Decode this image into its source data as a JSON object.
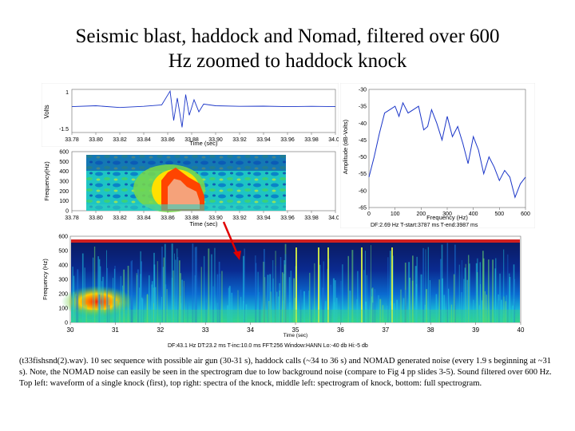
{
  "title_line1": "Seismic blast, haddock and Nomad, filtered over 600",
  "title_line2": "Hz zoomed to haddock knock",
  "waveform": {
    "ylabel": "Volts",
    "yticks": [
      "1",
      "-1.5"
    ],
    "xlabel": "Time (sec)",
    "xticks": [
      "33.78",
      "33.80",
      "33.82",
      "33.84",
      "33.86",
      "33.88",
      "33.90",
      "33.92",
      "33.94",
      "33.96",
      "33.98",
      "34.00"
    ]
  },
  "knock_spectrogram": {
    "ylabel": "Frequency(Hz)",
    "yticks": [
      "600",
      "500",
      "400",
      "300",
      "200",
      "100",
      "0"
    ],
    "xlabel": "Time (sec)",
    "xticks": [
      "33.78",
      "33.80",
      "33.82",
      "33.84",
      "33.86",
      "33.88",
      "33.90",
      "33.92",
      "33.94",
      "33.96",
      "33.98",
      "34.00"
    ]
  },
  "spectrum": {
    "ylabel": "Amplitude (dB-Volts)",
    "yticks": [
      "-30",
      "-35",
      "-40",
      "-45",
      "-50",
      "-55",
      "-60",
      "-65"
    ],
    "xlabel": "Frequency (Hz)",
    "xticks": [
      "0",
      "100",
      "200",
      "300",
      "400",
      "500",
      "600"
    ],
    "info": "DF:2.69 Hz    T-start:3787 ms    T-end:3987 ms"
  },
  "full_spectrogram": {
    "ylabel": "Frequency (Hz)",
    "yticks": [
      "600",
      "500",
      "400",
      "300",
      "200",
      "100",
      "0"
    ],
    "xlabel": "Time (sec)",
    "xticks": [
      "30",
      "31",
      "32",
      "33",
      "34",
      "35",
      "36",
      "37",
      "38",
      "39",
      "40"
    ],
    "info": "DF:43.1 Hz    DT:23.2 ms    T-inc:10.0 ms    FFT:256    Window:HANN    Lo:-40 db    Hi:-5 db"
  },
  "caption": "(t33fishsnd(2).wav). 10 sec sequence with possible air gun (30-31 s), haddock calls (~34 to 36 s) and NOMAD generated noise (every 1.9 s beginning at ~31 s).  Note, the NOMAD noise can easily be seen in the spectrogram due to low background noise (compare to Fig 4 pp slides 3-5). Sound filtered over 600 Hz. Top left: waveform of a single knock (first), top right: spectra of the knock, middle left: spectrogram of knock, bottom: full spectrogram.",
  "chart_data": [
    {
      "type": "line",
      "ylabel": "Volts",
      "xlabel": "Time (sec)",
      "xlim": [
        33.78,
        34.0
      ],
      "ylim": [
        -1.5,
        1
      ],
      "x": [
        33.78,
        33.8,
        33.82,
        33.84,
        33.855,
        33.862,
        33.865,
        33.868,
        33.872,
        33.875,
        33.878,
        33.882,
        33.886,
        33.89,
        33.9,
        33.92,
        33.94,
        33.96,
        33.98,
        34.0
      ],
      "y": [
        0.0,
        0.05,
        -0.05,
        0.02,
        0.1,
        0.9,
        -0.8,
        0.5,
        -1.2,
        0.7,
        -0.5,
        0.4,
        -0.3,
        0.15,
        0.05,
        0.02,
        0.03,
        0.0,
        0.02,
        0.0
      ]
    },
    {
      "type": "heatmap",
      "ylabel": "Frequency(Hz)",
      "xlabel": "Time (sec)",
      "xlim": [
        33.78,
        34.0
      ],
      "ylim": [
        0,
        600
      ]
    },
    {
      "type": "line",
      "ylabel": "Amplitude (dB-Volts)",
      "xlabel": "Frequency (Hz)",
      "xlim": [
        0,
        600
      ],
      "ylim": [
        -65,
        -30
      ],
      "x": [
        0,
        20,
        40,
        60,
        80,
        100,
        115,
        130,
        150,
        170,
        190,
        210,
        225,
        240,
        260,
        280,
        300,
        320,
        340,
        360,
        380,
        400,
        420,
        440,
        460,
        480,
        500,
        520,
        540,
        560,
        580,
        600
      ],
      "y": [
        -56,
        -50,
        -43,
        -37,
        -36,
        -35,
        -38,
        -34,
        -37,
        -36,
        -35,
        -42,
        -41,
        -36,
        -40,
        -45,
        -38,
        -44,
        -41,
        -46,
        -52,
        -44,
        -48,
        -55,
        -50,
        -53,
        -57,
        -54,
        -56,
        -62,
        -58,
        -56
      ]
    },
    {
      "type": "heatmap",
      "ylabel": "Frequency (Hz)",
      "xlabel": "Time (sec)",
      "xlim": [
        30,
        40
      ],
      "ylim": [
        0,
        600
      ]
    }
  ]
}
